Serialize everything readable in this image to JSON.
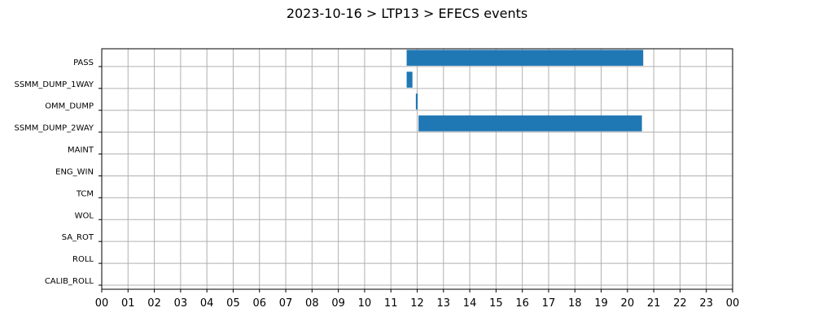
{
  "chart_data": {
    "type": "bar",
    "orientation": "horizontal-timeline",
    "title": "2023-10-16 > LTP13 > EFECS events",
    "xlabel": "",
    "ylabel": "",
    "grid": true,
    "legend": "none",
    "bar_color": "#1f77b4",
    "grid_color": "#b0b0b0",
    "xlim": [
      0,
      24
    ],
    "x_ticks": [
      "00",
      "01",
      "02",
      "03",
      "04",
      "05",
      "06",
      "07",
      "08",
      "09",
      "10",
      "11",
      "12",
      "13",
      "14",
      "15",
      "16",
      "17",
      "18",
      "19",
      "20",
      "21",
      "22",
      "23",
      "00"
    ],
    "categories": [
      "PASS",
      "SSMM_DUMP_1WAY",
      "OMM_DUMP",
      "SSMM_DUMP_2WAY",
      "MAINT",
      "ENG_WIN",
      "TCM",
      "WOL",
      "SA_ROT",
      "ROLL",
      "CALIB_ROLL"
    ],
    "events": [
      {
        "category": "PASS",
        "start": 11.6,
        "end": 20.6
      },
      {
        "category": "SSMM_DUMP_1WAY",
        "start": 11.6,
        "end": 11.82
      },
      {
        "category": "OMM_DUMP",
        "start": 11.95,
        "end": 12.02
      },
      {
        "category": "SSMM_DUMP_2WAY",
        "start": 12.05,
        "end": 20.55
      }
    ]
  }
}
